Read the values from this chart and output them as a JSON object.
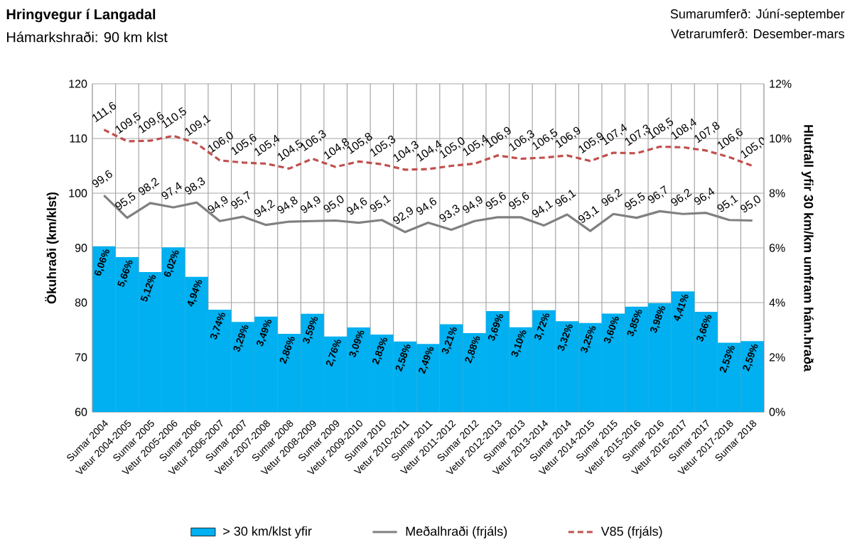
{
  "chart_data": {
    "type": "bar",
    "title": "Hringvegur í Langadal",
    "subtitle": "Hámarkshraði: 90 km klst",
    "annotations": [
      "Sumarumferð:  Júní-september",
      "Vetrarumferð:  Desember-mars"
    ],
    "ylabel": "Ökuhraði (km/klst)",
    "y2label": "Hlutfall yfir 30 km/km umfram hám.hraða",
    "categories": [
      "Sumar 2004",
      "Vetur 2004-2005",
      "Sumar 2005",
      "Vetur 2005-2006",
      "Sumar 2006",
      "Vetur 2006-2007",
      "Sumar 2007",
      "Vetur 2007-2008",
      "Sumar 2008",
      "Vetur 2008-2009",
      "Sumar 2009",
      "Vetur 2009-2010",
      "Sumar 2010",
      "Vetur 2010-2011",
      "Sumar 2011",
      "Vetur 2011-2012",
      "Sumar 2012",
      "Vetur 2012-2013",
      "Sumar 2013",
      "Vetur 2013-2014",
      "Sumar 2014",
      "Vetur 2014-2015",
      "Sumar 2015",
      "Vetur 2015-2016",
      "Sumar 2016",
      "Vetur 2016-2017",
      "Sumar 2017",
      "Vetur 2017-2018",
      "Sumar 2018"
    ],
    "series": [
      {
        "name": "> 30 km/klst yfir",
        "axis": "y2",
        "color": "#00b0f0",
        "values": [
          6.06,
          5.66,
          5.12,
          6.02,
          4.94,
          3.74,
          3.29,
          3.49,
          2.86,
          3.59,
          2.76,
          3.09,
          2.83,
          2.58,
          2.49,
          3.21,
          2.88,
          3.69,
          3.1,
          3.72,
          3.32,
          3.25,
          3.6,
          3.85,
          3.98,
          4.41,
          3.66,
          2.53,
          2.59
        ],
        "value_labels": [
          "6,06%",
          "5,66%",
          "5,12%",
          "6,02%",
          "4,94%",
          "3,74%",
          "3,29%",
          "3,49%",
          "2,86%",
          "3,59%",
          "2,76%",
          "3,09%",
          "2,83%",
          "2,58%",
          "2,49%",
          "3,21%",
          "2,88%",
          "3,69%",
          "3,10%",
          "3,72%",
          "3,32%",
          "3,25%",
          "3,60%",
          "3,85%",
          "3,98%",
          "4,41%",
          "3,66%",
          "2,53%",
          "2,59%"
        ]
      },
      {
        "name": "Meðalhraði (frjáls)",
        "type": "line",
        "color": "#808080",
        "line_style": "solid",
        "values": [
          99.6,
          95.5,
          98.2,
          97.4,
          98.3,
          94.9,
          95.7,
          94.2,
          94.8,
          94.9,
          95.0,
          94.6,
          95.1,
          92.9,
          94.6,
          93.3,
          94.9,
          95.6,
          95.6,
          94.1,
          96.1,
          93.1,
          96.2,
          95.5,
          96.7,
          96.2,
          96.4,
          95.1,
          95.0
        ],
        "value_labels": [
          "99,6",
          "95,5",
          "98,2",
          "97,4",
          "98,3",
          "94,9",
          "95,7",
          "94,2",
          "94,8",
          "94,9",
          "95,0",
          "94,6",
          "95,1",
          "92,9",
          "94,6",
          "93,3",
          "94,9",
          "95,6",
          "95,6",
          "94,1",
          "96,1",
          "93,1",
          "96,2",
          "95,5",
          "96,7",
          "96,2",
          "96,4",
          "95,1",
          "95,0"
        ]
      },
      {
        "name": "V85 (frjáls)",
        "type": "line",
        "color": "#c0504d",
        "line_style": "dashed",
        "values": [
          111.6,
          109.5,
          109.6,
          110.5,
          109.1,
          106.0,
          105.6,
          105.4,
          104.5,
          106.3,
          104.8,
          105.8,
          105.3,
          104.3,
          104.4,
          105.0,
          105.4,
          106.9,
          106.3,
          106.5,
          106.9,
          105.9,
          107.4,
          107.3,
          108.5,
          108.4,
          107.8,
          106.6,
          105.0
        ],
        "value_labels": [
          "111,6",
          "109,5",
          "109,6",
          "110,5",
          "109,1",
          "106,0",
          "105,6",
          "105,4",
          "104,5",
          "106,3",
          "104,8",
          "105,8",
          "105,3",
          "104,3",
          "104,4",
          "105,0",
          "105,4",
          "106,9",
          "106,3",
          "106,5",
          "106,9",
          "105,9",
          "107,4",
          "107,3",
          "108,5",
          "108,4",
          "107,8",
          "106,6",
          "105,0"
        ]
      }
    ],
    "ylim": [
      60,
      120
    ],
    "yticks": [
      60,
      70,
      80,
      90,
      100,
      110,
      120
    ],
    "y2lim": [
      0,
      12
    ],
    "y2ticks": [
      {
        "value": 0,
        "label": "0%"
      },
      {
        "value": 2,
        "label": "2%"
      },
      {
        "value": 4,
        "label": "4%"
      },
      {
        "value": 6,
        "label": "6%"
      },
      {
        "value": 8,
        "label": "8%"
      },
      {
        "value": 10,
        "label": "10%"
      },
      {
        "value": 12,
        "label": "12%"
      }
    ],
    "grid": true,
    "legend": "bottom",
    "marker": "none"
  }
}
